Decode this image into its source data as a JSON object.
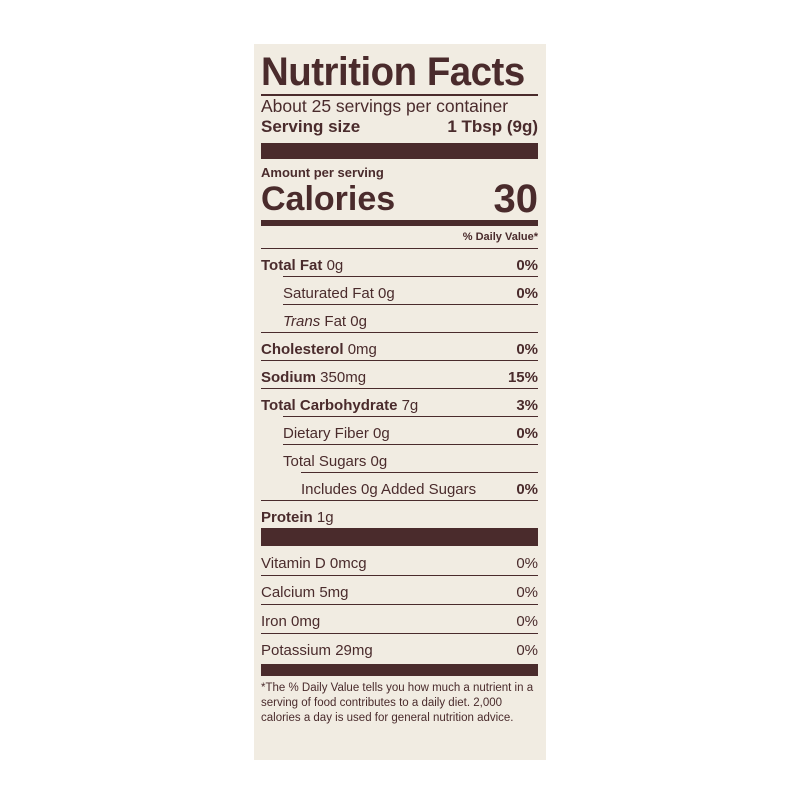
{
  "label": {
    "title": "Nutrition Facts",
    "servings": "About 25 servings per container",
    "serving_size_label": "Serving size",
    "serving_size_value": "1 Tbsp (9g)",
    "amount_per_serving": "Amount per serving",
    "calories_label": "Calories",
    "calories_value": "30",
    "dv_header": "% Daily Value*",
    "nutrients": [
      {
        "bold": "Total Fat",
        "amount": "0g",
        "dv": "0%"
      },
      {
        "bold": "",
        "amount": "Saturated Fat 0g",
        "dv": "0%"
      },
      {
        "italic": "Trans",
        "amount": "Fat 0g",
        "dv": ""
      },
      {
        "bold": "Cholesterol",
        "amount": "0mg",
        "dv": "0%"
      },
      {
        "bold": "Sodium",
        "amount": "350mg",
        "dv": "15%"
      },
      {
        "bold": "Total Carbohydrate",
        "amount": "7g",
        "dv": "3%"
      },
      {
        "bold": "",
        "amount": "Dietary Fiber 0g",
        "dv": "0%"
      },
      {
        "bold": "",
        "amount": "Total Sugars 0g",
        "dv": ""
      },
      {
        "bold": "",
        "amount": "Includes 0g Added Sugars",
        "dv": "0%"
      },
      {
        "bold": "Protein",
        "amount": "1g",
        "dv": ""
      }
    ],
    "vitamins": [
      {
        "name": "Vitamin D 0mcg",
        "dv": "0%"
      },
      {
        "name": "Calcium 5mg",
        "dv": "0%"
      },
      {
        "name": "Iron 0mg",
        "dv": "0%"
      },
      {
        "name": "Potassium 29mg",
        "dv": "0%"
      }
    ],
    "footnote": "*The % Daily Value tells you how much a nutrient in a serving of food contributes to a daily diet. 2,000 calories a day is used for general nutrition advice."
  },
  "colors": {
    "ink": "#4a2b2c",
    "paper": "#f1ece2"
  }
}
